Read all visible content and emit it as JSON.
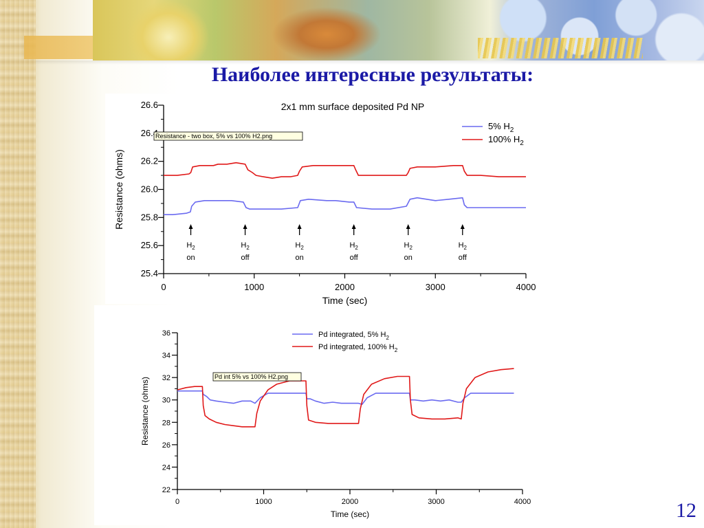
{
  "slide": {
    "title": "Наиболее интересные результаты:",
    "page_number": "12"
  },
  "colors": {
    "title": "#1b1aa6",
    "series_blue": "#6a6af0",
    "series_red": "#e01818"
  },
  "chart_data": [
    {
      "type": "line",
      "title": "2x1 mm surface deposited Pd NP",
      "xlabel": "Time (sec)",
      "ylabel": "Resistance (ohms)",
      "xlim": [
        0,
        4000
      ],
      "ylim": [
        25.4,
        26.6
      ],
      "xticks": [
        "0",
        "1000",
        "2000",
        "3000",
        "4000"
      ],
      "yticks": [
        "25.4",
        "25.6",
        "25.8",
        "26.0",
        "26.2",
        "26.4",
        "26.6"
      ],
      "tooltip": "Resistance - two box, 5% vs 100% H2.png",
      "annotations": [
        {
          "x": 300,
          "line1": "H",
          "sub": "2",
          "line2": "on"
        },
        {
          "x": 900,
          "line1": "H",
          "sub": "2",
          "line2": "off"
        },
        {
          "x": 1500,
          "line1": "H",
          "sub": "2",
          "line2": "on"
        },
        {
          "x": 2100,
          "line1": "H",
          "sub": "2",
          "line2": "off"
        },
        {
          "x": 2700,
          "line1": "H",
          "sub": "2",
          "line2": "on"
        },
        {
          "x": 3300,
          "line1": "H",
          "sub": "2",
          "line2": "off"
        }
      ],
      "series": [
        {
          "name": "5% H2",
          "legend_main": "5% H",
          "legend_sub": "2",
          "color": "#6a6af0",
          "x": [
            0,
            100,
            250,
            295,
            310,
            350,
            450,
            600,
            750,
            880,
            910,
            950,
            1100,
            1300,
            1480,
            1510,
            1600,
            1800,
            1900,
            2050,
            2100,
            2130,
            2300,
            2500,
            2680,
            2720,
            2800,
            3000,
            3150,
            3300,
            3320,
            3350,
            3500,
            3800,
            4000
          ],
          "y": [
            25.82,
            25.82,
            25.83,
            25.84,
            25.88,
            25.91,
            25.92,
            25.92,
            25.92,
            25.91,
            25.87,
            25.86,
            25.86,
            25.86,
            25.87,
            25.92,
            25.93,
            25.92,
            25.92,
            25.91,
            25.91,
            25.87,
            25.86,
            25.86,
            25.88,
            25.93,
            25.94,
            25.92,
            25.93,
            25.94,
            25.89,
            25.87,
            25.87,
            25.87,
            25.87
          ]
        },
        {
          "name": "100% H2",
          "legend_main": "100% H",
          "legend_sub": "2",
          "color": "#e01818",
          "x": [
            0,
            150,
            280,
            300,
            320,
            400,
            550,
            600,
            700,
            800,
            900,
            930,
            980,
            1020,
            1100,
            1200,
            1300,
            1400,
            1480,
            1500,
            1530,
            1650,
            1800,
            1950,
            2100,
            2120,
            2150,
            2300,
            2500,
            2680,
            2700,
            2720,
            2800,
            3000,
            3200,
            3300,
            3320,
            3350,
            3500,
            3700,
            4000
          ],
          "y": [
            26.1,
            26.1,
            26.11,
            26.12,
            26.16,
            26.17,
            26.17,
            26.18,
            26.18,
            26.19,
            26.18,
            26.14,
            26.12,
            26.1,
            26.09,
            26.08,
            26.09,
            26.09,
            26.1,
            26.13,
            26.16,
            26.17,
            26.17,
            26.17,
            26.17,
            26.14,
            26.1,
            26.1,
            26.1,
            26.1,
            26.12,
            26.15,
            26.16,
            26.16,
            26.17,
            26.17,
            26.13,
            26.1,
            26.1,
            26.09,
            26.09
          ]
        }
      ]
    },
    {
      "type": "line",
      "title": "",
      "xlabel": "Time (sec)",
      "ylabel": "Resistance (ohms)",
      "xlim": [
        0,
        4000
      ],
      "ylim": [
        22,
        36
      ],
      "xticks": [
        "0",
        "1000",
        "2000",
        "3000",
        "4000"
      ],
      "yticks": [
        "22",
        "24",
        "26",
        "28",
        "30",
        "32",
        "34",
        "36"
      ],
      "tooltip": "Pd int 5% vs 100% H2.png",
      "series": [
        {
          "name": "Pd integrated, 5% H2",
          "legend_main": "Pd integrated, 5% H",
          "legend_sub": "2",
          "color": "#6a6af0",
          "x": [
            0,
            290,
            300,
            340,
            380,
            450,
            550,
            650,
            750,
            850,
            900,
            960,
            1050,
            1200,
            1400,
            1490,
            1500,
            1540,
            1600,
            1700,
            1800,
            1900,
            2000,
            2100,
            2140,
            2200,
            2300,
            2500,
            2690,
            2700,
            2750,
            2850,
            2950,
            3050,
            3150,
            3250,
            3290,
            3330,
            3400,
            3600,
            3900
          ],
          "y": [
            30.8,
            30.8,
            30.5,
            30.3,
            30.0,
            29.9,
            29.8,
            29.7,
            29.9,
            29.9,
            29.7,
            30.2,
            30.6,
            30.6,
            30.6,
            30.6,
            30.1,
            30.1,
            29.9,
            29.7,
            29.8,
            29.7,
            29.7,
            29.7,
            29.6,
            30.2,
            30.6,
            30.6,
            30.6,
            30.0,
            30.0,
            29.9,
            30.0,
            29.9,
            30.0,
            29.8,
            29.8,
            30.2,
            30.6,
            30.6,
            30.6
          ]
        },
        {
          "name": "Pd integrated, 100% H2",
          "legend_main": "Pd integrated, 100% H",
          "legend_sub": "2",
          "color": "#e01818",
          "x": [
            0,
            100,
            200,
            290,
            300,
            320,
            370,
            450,
            550,
            650,
            750,
            850,
            900,
            920,
            960,
            1050,
            1150,
            1300,
            1490,
            1500,
            1520,
            1600,
            1750,
            1900,
            2050,
            2100,
            2120,
            2160,
            2250,
            2400,
            2550,
            2690,
            2700,
            2720,
            2800,
            2950,
            3100,
            3250,
            3290,
            3310,
            3350,
            3450,
            3600,
            3750,
            3900
          ],
          "y": [
            30.9,
            31.1,
            31.2,
            31.2,
            29.5,
            28.6,
            28.3,
            28.0,
            27.8,
            27.7,
            27.6,
            27.6,
            27.6,
            28.8,
            29.9,
            30.9,
            31.4,
            31.7,
            31.7,
            29.5,
            28.2,
            28.0,
            27.9,
            27.9,
            27.9,
            27.9,
            29.2,
            30.5,
            31.4,
            31.9,
            32.1,
            32.1,
            30.0,
            28.7,
            28.4,
            28.3,
            28.3,
            28.4,
            28.3,
            29.7,
            31.0,
            32.0,
            32.5,
            32.7,
            32.8
          ]
        }
      ]
    }
  ]
}
